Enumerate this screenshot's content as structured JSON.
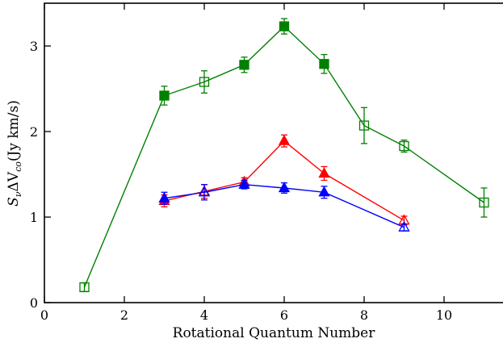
{
  "chart_data": {
    "type": "line",
    "title": "",
    "xlabel": "Rotational Quantum Number",
    "ylabel_parts": {
      "base": "S",
      "sub1": "ν",
      "mid": "ΔV",
      "sub2": "co",
      "unit": "(Jy  km/s)"
    },
    "xlim": [
      0,
      12
    ],
    "ylim": [
      0,
      3.5
    ],
    "xticks": [
      0,
      2,
      4,
      6,
      8,
      10
    ],
    "yticks": [
      0,
      1,
      2,
      3
    ],
    "grid": false,
    "series": [
      {
        "color": "#008000",
        "points": [
          {
            "x": 1,
            "y": 0.18,
            "err": 0.05,
            "marker": "square-open"
          },
          {
            "x": 3,
            "y": 2.42,
            "err": 0.11,
            "marker": "square-filled"
          },
          {
            "x": 4,
            "y": 2.58,
            "err": 0.13,
            "marker": "square-open"
          },
          {
            "x": 5,
            "y": 2.78,
            "err": 0.09,
            "marker": "square-filled"
          },
          {
            "x": 6,
            "y": 3.23,
            "err": 0.09,
            "marker": "square-filled"
          },
          {
            "x": 7,
            "y": 2.79,
            "err": 0.11,
            "marker": "square-filled"
          },
          {
            "x": 8,
            "y": 2.07,
            "err": 0.21,
            "marker": "square-open"
          },
          {
            "x": 9,
            "y": 1.83,
            "err": 0.07,
            "marker": "square-open"
          },
          {
            "x": 11,
            "y": 1.17,
            "err": 0.17,
            "marker": "square-open"
          }
        ]
      },
      {
        "color": "#ff0000",
        "points": [
          {
            "x": 3,
            "y": 1.19,
            "err": 0.07,
            "marker": "triangle-filled"
          },
          {
            "x": 4,
            "y": 1.3,
            "err": 0.08,
            "marker": "triangle-open"
          },
          {
            "x": 5,
            "y": 1.41,
            "err": 0.05,
            "marker": "triangle-filled"
          },
          {
            "x": 6,
            "y": 1.89,
            "err": 0.07,
            "marker": "triangle-filled"
          },
          {
            "x": 7,
            "y": 1.51,
            "err": 0.08,
            "marker": "triangle-filled"
          },
          {
            "x": 9,
            "y": 0.96,
            "err": 0.05,
            "marker": "triangle-open"
          }
        ]
      },
      {
        "color": "#0000ff",
        "points": [
          {
            "x": 3,
            "y": 1.22,
            "err": 0.07,
            "marker": "triangle-filled"
          },
          {
            "x": 4,
            "y": 1.29,
            "err": 0.09,
            "marker": "triangle-open"
          },
          {
            "x": 5,
            "y": 1.38,
            "err": 0.05,
            "marker": "triangle-filled"
          },
          {
            "x": 6,
            "y": 1.34,
            "err": 0.06,
            "marker": "triangle-filled"
          },
          {
            "x": 7,
            "y": 1.29,
            "err": 0.07,
            "marker": "triangle-filled"
          },
          {
            "x": 9,
            "y": 0.88,
            "err": 0.04,
            "marker": "triangle-open"
          }
        ]
      }
    ]
  }
}
